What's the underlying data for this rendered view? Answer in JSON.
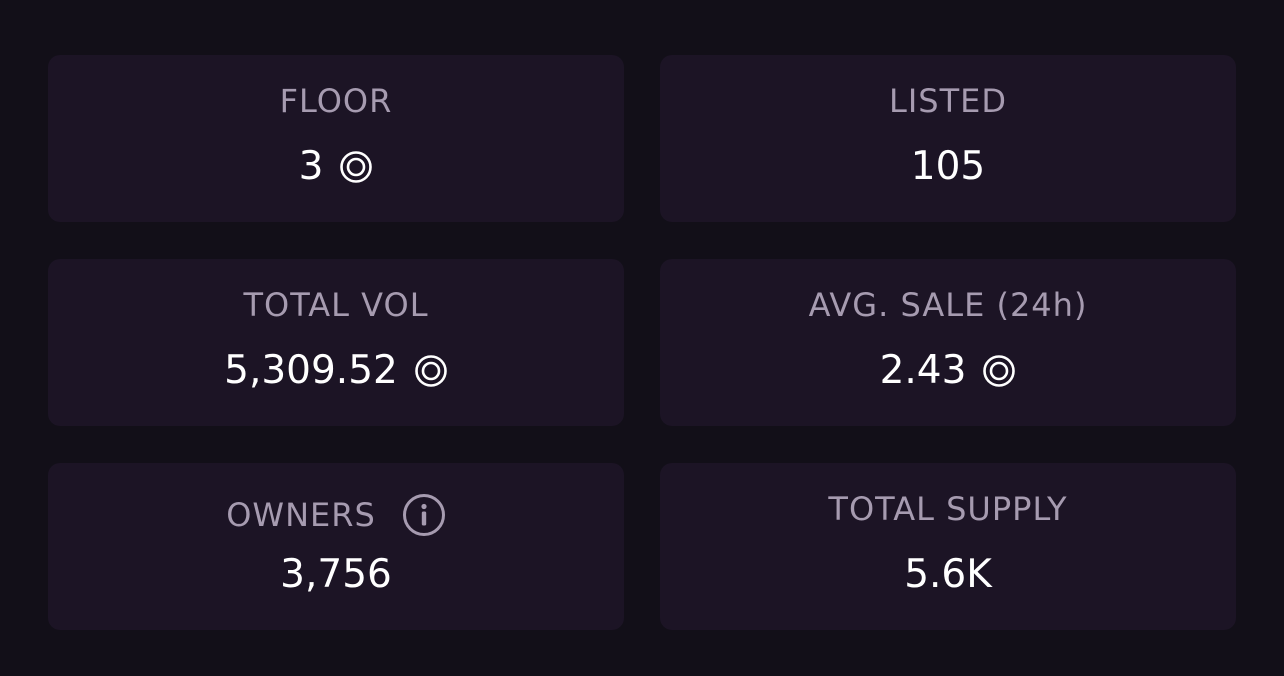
{
  "stats": [
    {
      "label": "FLOOR",
      "value": "3",
      "icon": "coin-icon"
    },
    {
      "label": "LISTED",
      "value": "105",
      "icon": ""
    },
    {
      "label": "TOTAL VOL",
      "value": "5,309.52",
      "icon": "coin-icon"
    },
    {
      "label": "AVG. SALE (24h)",
      "value": "2.43",
      "icon": "coin-icon"
    },
    {
      "label": "OWNERS",
      "value": "3,756",
      "label_icon": "info-icon"
    },
    {
      "label": "TOTAL SUPPLY",
      "value": "5.6K",
      "icon": ""
    }
  ],
  "colors": {
    "background": "#120f18",
    "card": "#1c1425",
    "label": "#a69bb0",
    "value": "#ffffff"
  }
}
